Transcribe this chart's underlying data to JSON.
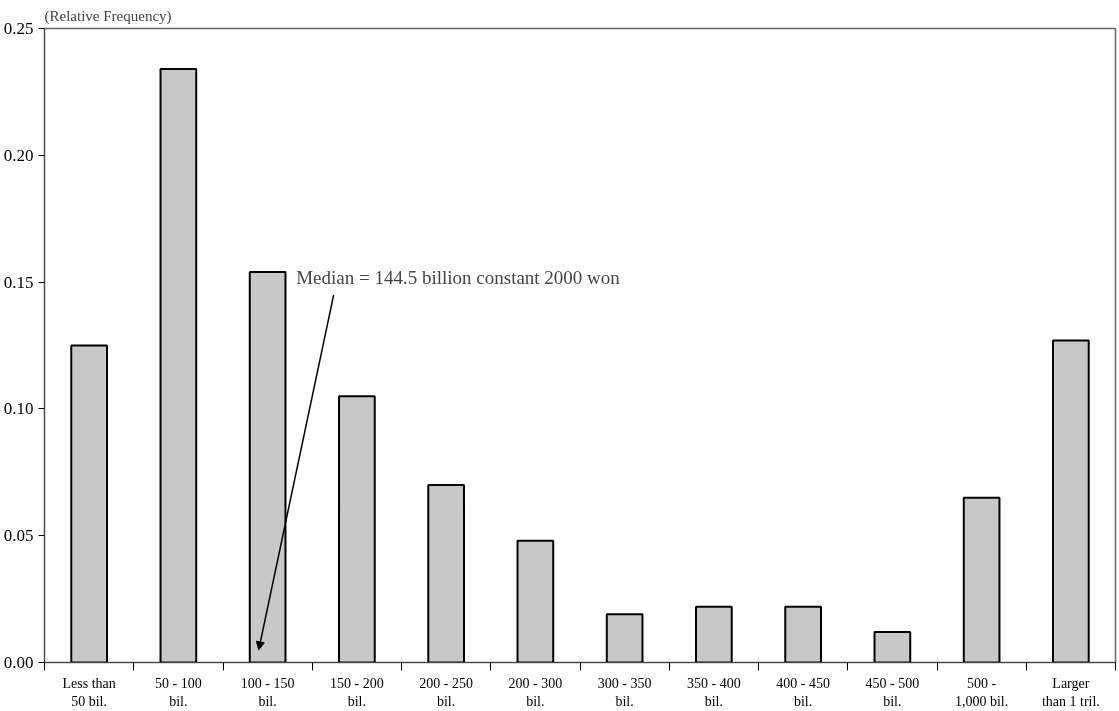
{
  "chart_data": {
    "type": "bar",
    "ylabel": "(Relative Frequency)",
    "categories": [
      "Less than\n50 bil.",
      "50 - 100\nbil.",
      "100 - 150\nbil.",
      "150 - 200\nbil.",
      "200 - 250\nbil.",
      "200 - 300\nbil.",
      "300 - 350\nbil.",
      "350 - 400\nbil.",
      "400 - 450\nbil.",
      "450 - 500\nbil.",
      "500 -\n1,000 bil.",
      "Larger\nthan 1 tril."
    ],
    "values": [
      0.125,
      0.234,
      0.154,
      0.105,
      0.07,
      0.048,
      0.019,
      0.022,
      0.022,
      0.012,
      0.065,
      0.127
    ],
    "color": "#c8c8c8",
    "ylim": [
      0,
      0.25
    ],
    "yticks": [
      {
        "value": 0,
        "label": "0.00"
      },
      {
        "value": 0.05,
        "label": "0.05"
      },
      {
        "value": 0.1,
        "label": "0.10"
      },
      {
        "value": 0.15,
        "label": "0.15"
      },
      {
        "value": 0.2,
        "label": "0.20"
      },
      {
        "value": 0.25,
        "label": "0.25"
      }
    ],
    "grid": false,
    "annotations": [
      "Median = 144.5 billion constant 2000 won"
    ]
  }
}
